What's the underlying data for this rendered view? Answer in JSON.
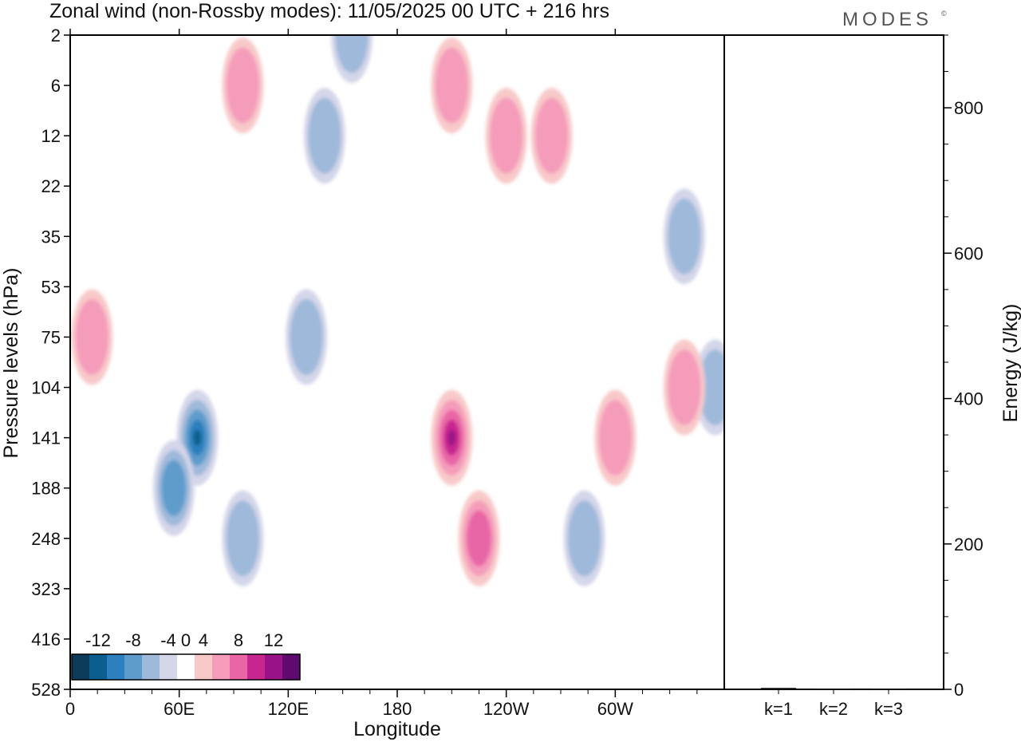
{
  "header": {
    "title": "Zonal wind (non-Rossby modes):  11/05/2025  00 UTC  + 216 hrs",
    "brand": "MODES",
    "brand_mark": "©"
  },
  "chart_data": [
    {
      "type": "heatmap",
      "title": "Zonal wind (non-Rossby modes):  11/05/2025  00 UTC  + 216 hrs",
      "xlabel": "Longitude",
      "ylabel": "Pressure levels (hPa)",
      "x_ticks": [
        "0",
        "60E",
        "120E",
        "180",
        "120W",
        "60W"
      ],
      "y_ticks": [
        "2",
        "6",
        "12",
        "22",
        "35",
        "53",
        "75",
        "104",
        "141",
        "188",
        "248",
        "323",
        "416",
        "528"
      ],
      "colorbar": {
        "tick_labels": [
          "-12",
          "-8",
          "-4",
          "0",
          "4",
          "8",
          "12"
        ],
        "levels": [
          -14,
          -12,
          -10,
          -8,
          -6,
          -4,
          -2,
          2,
          4,
          6,
          8,
          10,
          12,
          14
        ],
        "colors": [
          "#0d3b5a",
          "#0b5e8e",
          "#2c80bd",
          "#5e9ccc",
          "#9fb9da",
          "#d4d6e9",
          "#ffffff",
          "#f8c9c9",
          "#f59cbb",
          "#e866a6",
          "#c8268f",
          "#9a1288",
          "#5e0a6e"
        ]
      },
      "features": [
        {
          "lon": 70,
          "level": 141,
          "value": -13
        },
        {
          "lon": 57,
          "level": 188,
          "value": -7
        },
        {
          "lon": 95,
          "level": 248,
          "value": -5
        },
        {
          "lon": 140,
          "level": 12,
          "value": -6
        },
        {
          "lon": 155,
          "level": 2,
          "value": -5
        },
        {
          "lon": 130,
          "level": 75,
          "value": -5
        },
        {
          "lon": 283,
          "level": 248,
          "value": -6
        },
        {
          "lon": 338,
          "level": 35,
          "value": -6
        },
        {
          "lon": 355,
          "level": 104,
          "value": -5
        },
        {
          "lon": 210,
          "level": 141,
          "value": 11
        },
        {
          "lon": 225,
          "level": 248,
          "value": 7
        },
        {
          "lon": 240,
          "level": 12,
          "value": 6
        },
        {
          "lon": 265,
          "level": 12,
          "value": 6
        },
        {
          "lon": 300,
          "level": 141,
          "value": 6
        },
        {
          "lon": 338,
          "level": 104,
          "value": 6
        },
        {
          "lon": 12,
          "level": 75,
          "value": 5
        },
        {
          "lon": 95,
          "level": 6,
          "value": 5
        },
        {
          "lon": 210,
          "level": 6,
          "value": 5
        }
      ]
    },
    {
      "type": "bar",
      "categories": [
        "k=1",
        "k=2",
        "k=3"
      ],
      "values": [
        2,
        1,
        1
      ],
      "ylabel": "Energy (J/kg)",
      "ylim": [
        0,
        900
      ],
      "y_ticks": [
        0,
        200,
        400,
        600,
        800
      ]
    }
  ]
}
